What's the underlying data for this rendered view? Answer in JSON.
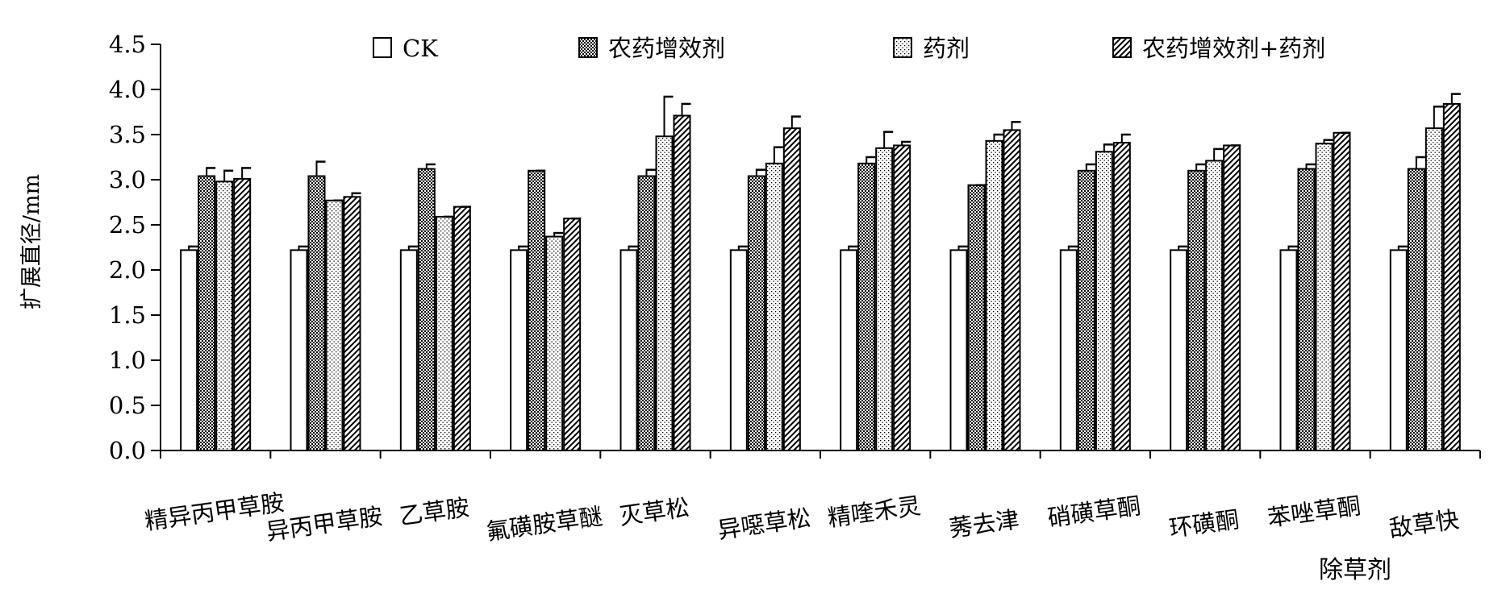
{
  "chart_data": {
    "type": "bar",
    "ylabel": "扩展直径/mm",
    "xlabel": "除草剂",
    "ylim": [
      0,
      4.5
    ],
    "yticks": [
      "0.0",
      "0.5",
      "1.0",
      "1.5",
      "2.0",
      "2.5",
      "3.0",
      "3.5",
      "4.0",
      "4.5"
    ],
    "ytick_values": [
      0,
      0.5,
      1.0,
      1.5,
      2.0,
      2.5,
      3.0,
      3.5,
      4.0,
      4.5
    ],
    "grid": false,
    "legend_position": "top",
    "categories": [
      "精异丙甲草胺",
      "异丙甲草胺",
      "乙草胺",
      "氟磺胺草醚",
      "灭草松",
      "异噁草松",
      "精喹禾灵",
      "莠去津",
      "硝磺草酮",
      "环磺酮",
      "苯唑草酮",
      "敌草快"
    ],
    "series": [
      {
        "name": "CK",
        "pattern": "white",
        "values": [
          2.22,
          2.22,
          2.22,
          2.22,
          2.22,
          2.22,
          2.22,
          2.22,
          2.22,
          2.22,
          2.22,
          2.22
        ],
        "errors": [
          0.04,
          0.04,
          0.04,
          0.04,
          0.04,
          0.04,
          0.04,
          0.04,
          0.04,
          0.04,
          0.04,
          0.04
        ]
      },
      {
        "name": "农药增效剂",
        "pattern": "dense-dots",
        "values": [
          3.04,
          3.04,
          3.12,
          3.1,
          3.04,
          3.04,
          3.18,
          2.94,
          3.1,
          3.1,
          3.12,
          3.12
        ],
        "errors": [
          0.09,
          0.16,
          0.05,
          0.0,
          0.07,
          0.07,
          0.07,
          0.0,
          0.07,
          0.07,
          0.05,
          0.13
        ]
      },
      {
        "name": "药剂",
        "pattern": "sparse-dots",
        "values": [
          2.98,
          2.77,
          2.59,
          2.37,
          3.48,
          3.18,
          3.35,
          3.43,
          3.31,
          3.21,
          3.4,
          3.57
        ],
        "errors": [
          0.12,
          0.0,
          0.0,
          0.04,
          0.44,
          0.18,
          0.18,
          0.07,
          0.08,
          0.13,
          0.04,
          0.24
        ]
      },
      {
        "name": "农药增效剂+药剂",
        "pattern": "diagonal",
        "values": [
          3.01,
          2.81,
          2.7,
          2.57,
          3.71,
          3.57,
          3.38,
          3.55,
          3.41,
          3.38,
          3.52,
          3.84
        ],
        "errors": [
          0.12,
          0.04,
          0.0,
          0.0,
          0.13,
          0.13,
          0.04,
          0.09,
          0.09,
          0.0,
          0.0,
          0.11
        ]
      }
    ]
  }
}
